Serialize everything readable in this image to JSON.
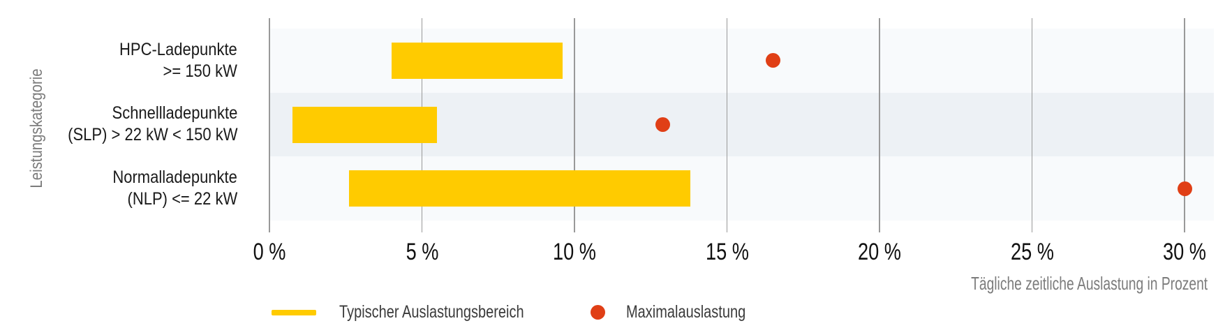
{
  "chart_data": {
    "type": "bar",
    "subtype": "horizontal-range-bar-with-max-point",
    "title": "",
    "ylabel": "Leistungskategorie",
    "xlabel": "Tägliche zeitliche Auslastung in Prozent",
    "x_ticks": [
      0,
      5,
      10,
      15,
      20,
      25,
      30
    ],
    "x_tick_label_format": "{v} %",
    "xlim": [
      0,
      31
    ],
    "grid": "vertical-gridlines-only",
    "row_striping": true,
    "legend_position": "bottom",
    "categories": [
      {
        "lines": [
          "HPC-Ladepunkte",
          ">= 150 kW"
        ]
      },
      {
        "lines": [
          "Schnellladepunkte",
          "(SLP) > 22 kW < 150 kW"
        ]
      },
      {
        "lines": [
          "Normalladepunkte",
          "(NLP) <= 22 kW"
        ]
      }
    ],
    "series": [
      {
        "name": "Typischer Auslastungsbereich",
        "mark": "range-bar",
        "color": "#ffcb00",
        "ranges_percent": [
          [
            4.0,
            9.6
          ],
          [
            0.75,
            5.5
          ],
          [
            2.6,
            13.8
          ]
        ]
      },
      {
        "name": "Maximalauslastung",
        "mark": "point",
        "color": "#e03f16",
        "values_percent": [
          16.5,
          12.9,
          30.0
        ]
      }
    ],
    "colors": {
      "band_light": "#f8fafc",
      "band_dark": "#edf1f5",
      "gridline": "#999999",
      "tick_text": "#111111",
      "category_text": "#1a1a1a",
      "axis_title_text": "#7c7c7c",
      "legend_text": "#3a3a3a"
    }
  }
}
